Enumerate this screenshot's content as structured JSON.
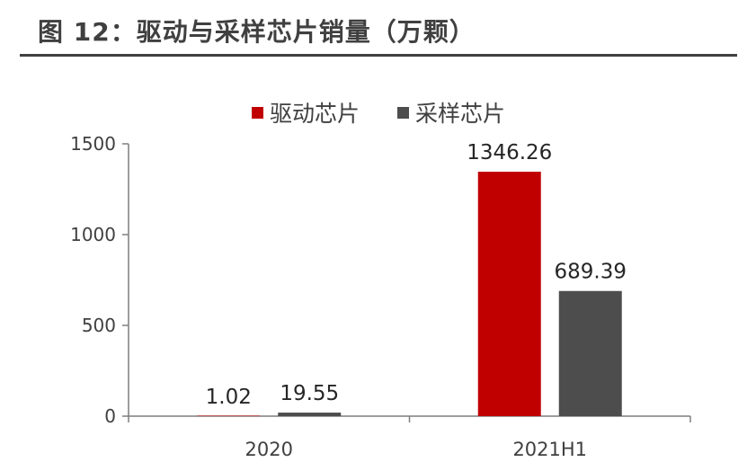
{
  "figure": {
    "title": "图 12：驱动与采样芯片销量（万颗）"
  },
  "chart_data": {
    "type": "bar",
    "title": "图 12：驱动与采样芯片销量（万颗）",
    "categories": [
      "2020",
      "2021H1"
    ],
    "series": [
      {
        "name": "驱动芯片",
        "color": "#C00000",
        "values": [
          1.02,
          1346.26
        ],
        "labels": [
          "1.02",
          "1346.26"
        ]
      },
      {
        "name": "采样芯片",
        "color": "#4D4D4D",
        "values": [
          19.55,
          689.39
        ],
        "labels": [
          "19.55",
          "689.39"
        ]
      }
    ],
    "ylim": [
      0,
      1500
    ],
    "yticks": [
      0,
      500,
      1000,
      1500
    ],
    "xlabel": "",
    "ylabel": "",
    "grid": false,
    "legend": "top-center"
  }
}
